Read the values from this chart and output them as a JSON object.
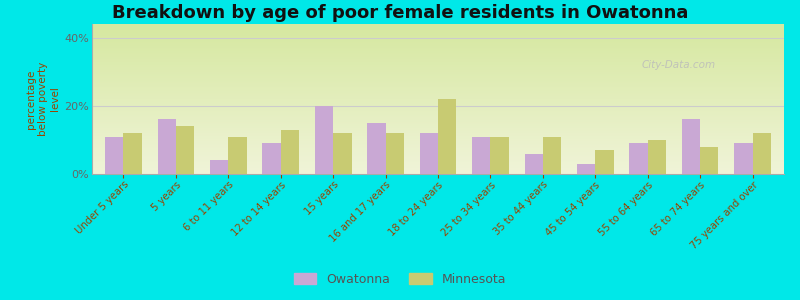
{
  "title": "Breakdown by age of poor female residents in Owatonna",
  "ylabel": "percentage\nbelow poverty\nlevel",
  "categories": [
    "Under 5 years",
    "5 years",
    "6 to 11 years",
    "12 to 14 years",
    "15 years",
    "16 and 17 years",
    "18 to 24 years",
    "25 to 34 years",
    "35 to 44 years",
    "45 to 54 years",
    "55 to 64 years",
    "65 to 74 years",
    "75 years and over"
  ],
  "owatonna": [
    11,
    16,
    4,
    9,
    20,
    15,
    12,
    11,
    6,
    3,
    9,
    16,
    9
  ],
  "minnesota": [
    12,
    14,
    11,
    13,
    12,
    12,
    22,
    11,
    11,
    7,
    10,
    8,
    12
  ],
  "owatonna_color": "#c9a8d4",
  "minnesota_color": "#c8cb72",
  "background_top": "#d6e8a0",
  "background_bottom": "#f0f4d8",
  "outer_bg": "#00e8e8",
  "yticks": [
    0,
    20,
    40
  ],
  "ylim": [
    0,
    44
  ],
  "bar_width": 0.35,
  "title_fontsize": 13,
  "legend_labels": [
    "Owatonna",
    "Minnesota"
  ],
  "watermark": "City-Data.com"
}
